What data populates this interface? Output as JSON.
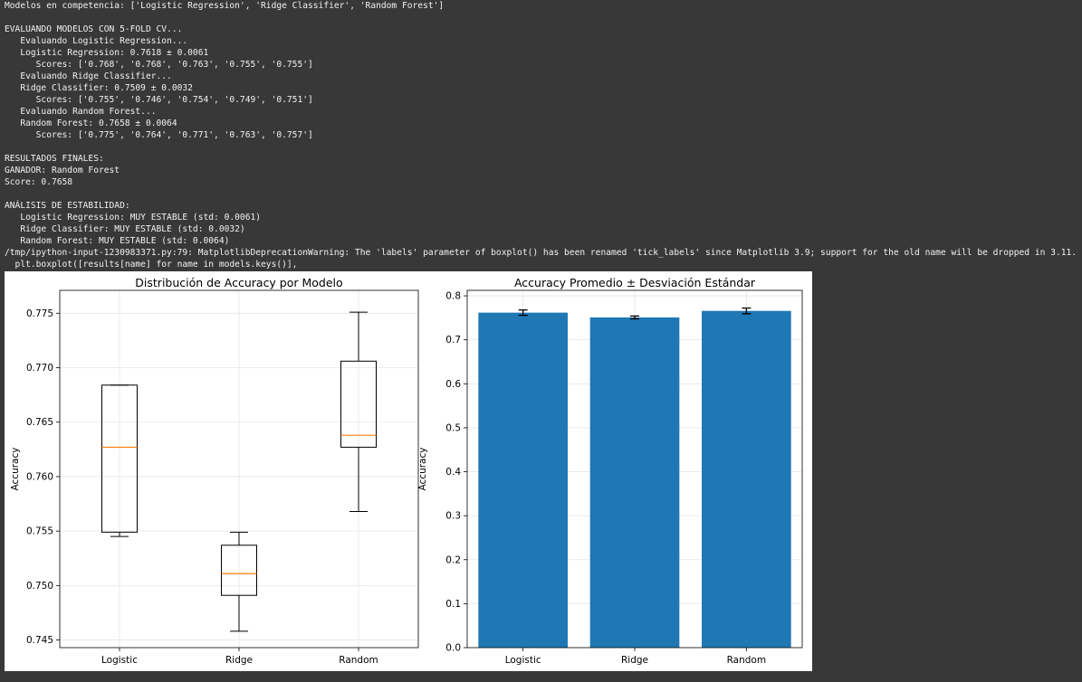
{
  "console": {
    "lines": [
      "Modelos en competencia: ['Logistic Regression', 'Ridge Classifier', 'Random Forest']",
      "",
      "EVALUANDO MODELOS CON 5-FOLD CV...",
      "   Evaluando Logistic Regression...",
      "   Logistic Regression: 0.7618 ± 0.0061",
      "      Scores: ['0.768', '0.768', '0.763', '0.755', '0.755']",
      "   Evaluando Ridge Classifier...",
      "   Ridge Classifier: 0.7509 ± 0.0032",
      "      Scores: ['0.755', '0.746', '0.754', '0.749', '0.751']",
      "   Evaluando Random Forest...",
      "   Random Forest: 0.7658 ± 0.0064",
      "      Scores: ['0.775', '0.764', '0.771', '0.763', '0.757']",
      "",
      "RESULTADOS FINALES:",
      "GANADOR: Random Forest",
      "Score: 0.7658",
      "",
      "ANÁLISIS DE ESTABILIDAD:",
      "   Logistic Regression: MUY ESTABLE (std: 0.0061)",
      "   Ridge Classifier: MUY ESTABLE (std: 0.0032)",
      "   Random Forest: MUY ESTABLE (std: 0.0064)",
      "/tmp/ipython-input-1230983371.py:79: MatplotlibDeprecationWarning: The 'labels' parameter of boxplot() has been renamed 'tick_labels' since Matplotlib 3.9; support for the old name will be dropped in 3.11.",
      "  plt.boxplot([results[name] for name in models.keys()],"
    ]
  },
  "colors": {
    "background": "#383838",
    "text": "#f2f2f2",
    "bar": "#1f77b4",
    "median": "#ff7f0e",
    "box": "#000000",
    "grid": "#e6e6e6"
  },
  "chart_data": [
    {
      "type": "boxplot",
      "title": "Distribución de Accuracy por Modelo",
      "xlabel": "",
      "ylabel": "Accuracy",
      "categories": [
        "Logistic",
        "Ridge",
        "Random"
      ],
      "boxes": [
        {
          "whisker_low": 0.7545,
          "q1": 0.7549,
          "median": 0.7627,
          "q3": 0.7684,
          "whisker_high": 0.7684
        },
        {
          "whisker_low": 0.7458,
          "q1": 0.7491,
          "median": 0.7511,
          "q3": 0.7537,
          "whisker_high": 0.7549
        },
        {
          "whisker_low": 0.7568,
          "q1": 0.7627,
          "median": 0.7638,
          "q3": 0.7706,
          "whisker_high": 0.7751
        }
      ],
      "ylim": [
        0.7443,
        0.7771
      ],
      "yticks": [
        "0.745",
        "0.750",
        "0.755",
        "0.760",
        "0.765",
        "0.770",
        "0.775"
      ],
      "grid": true
    },
    {
      "type": "bar",
      "title": "Accuracy Promedio ± Desviación Estándar",
      "xlabel": "",
      "ylabel": "Accuracy",
      "categories": [
        "Logistic",
        "Ridge",
        "Random"
      ],
      "values": [
        0.7618,
        0.7509,
        0.7658
      ],
      "errors": [
        0.0061,
        0.0032,
        0.0064
      ],
      "ylim": [
        0,
        0.8125
      ],
      "yticks": [
        "0.0",
        "0.1",
        "0.2",
        "0.3",
        "0.4",
        "0.5",
        "0.6",
        "0.7",
        "0.8"
      ],
      "grid": true
    }
  ]
}
